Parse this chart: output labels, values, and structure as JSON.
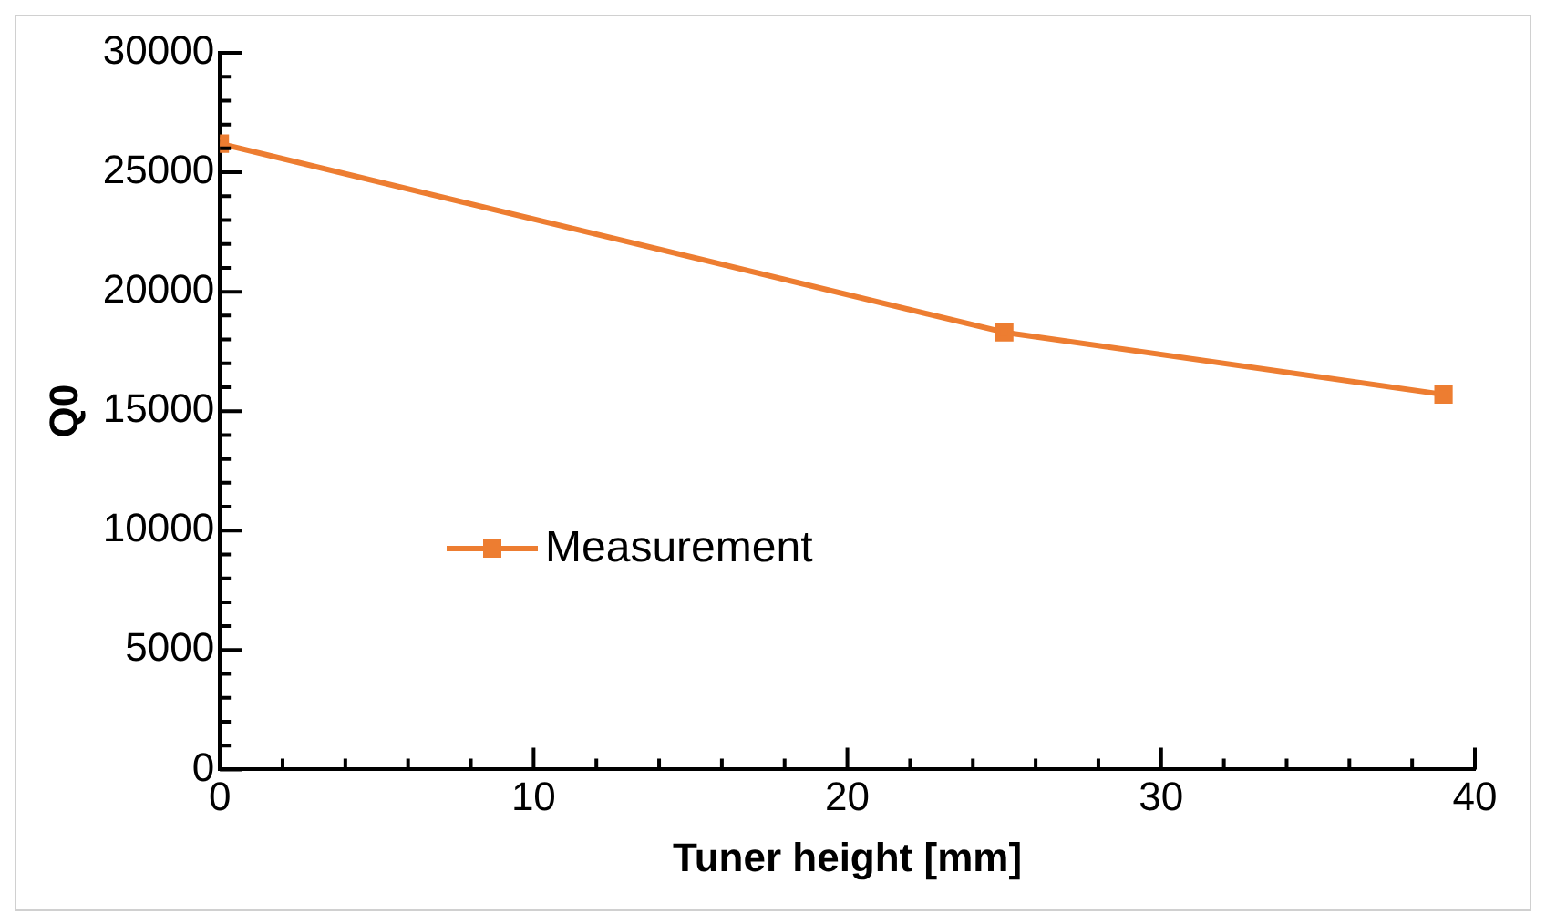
{
  "chart_data": {
    "type": "line",
    "xlabel": "Tuner height [mm]",
    "ylabel": "Q0",
    "x": [
      0,
      25,
      39
    ],
    "series": [
      {
        "name": "Measurement",
        "color": "#ed7d31",
        "values": [
          26200,
          18300,
          15700
        ]
      }
    ],
    "xlim": [
      0,
      40
    ],
    "xticks": [
      0,
      10,
      20,
      30,
      40
    ],
    "ylim": [
      0,
      30000
    ],
    "yticks": [
      0,
      5000,
      10000,
      15000,
      20000,
      25000,
      30000
    ],
    "grid": false,
    "legend": "bottom left",
    "marker": "square",
    "line_style": "solid"
  }
}
